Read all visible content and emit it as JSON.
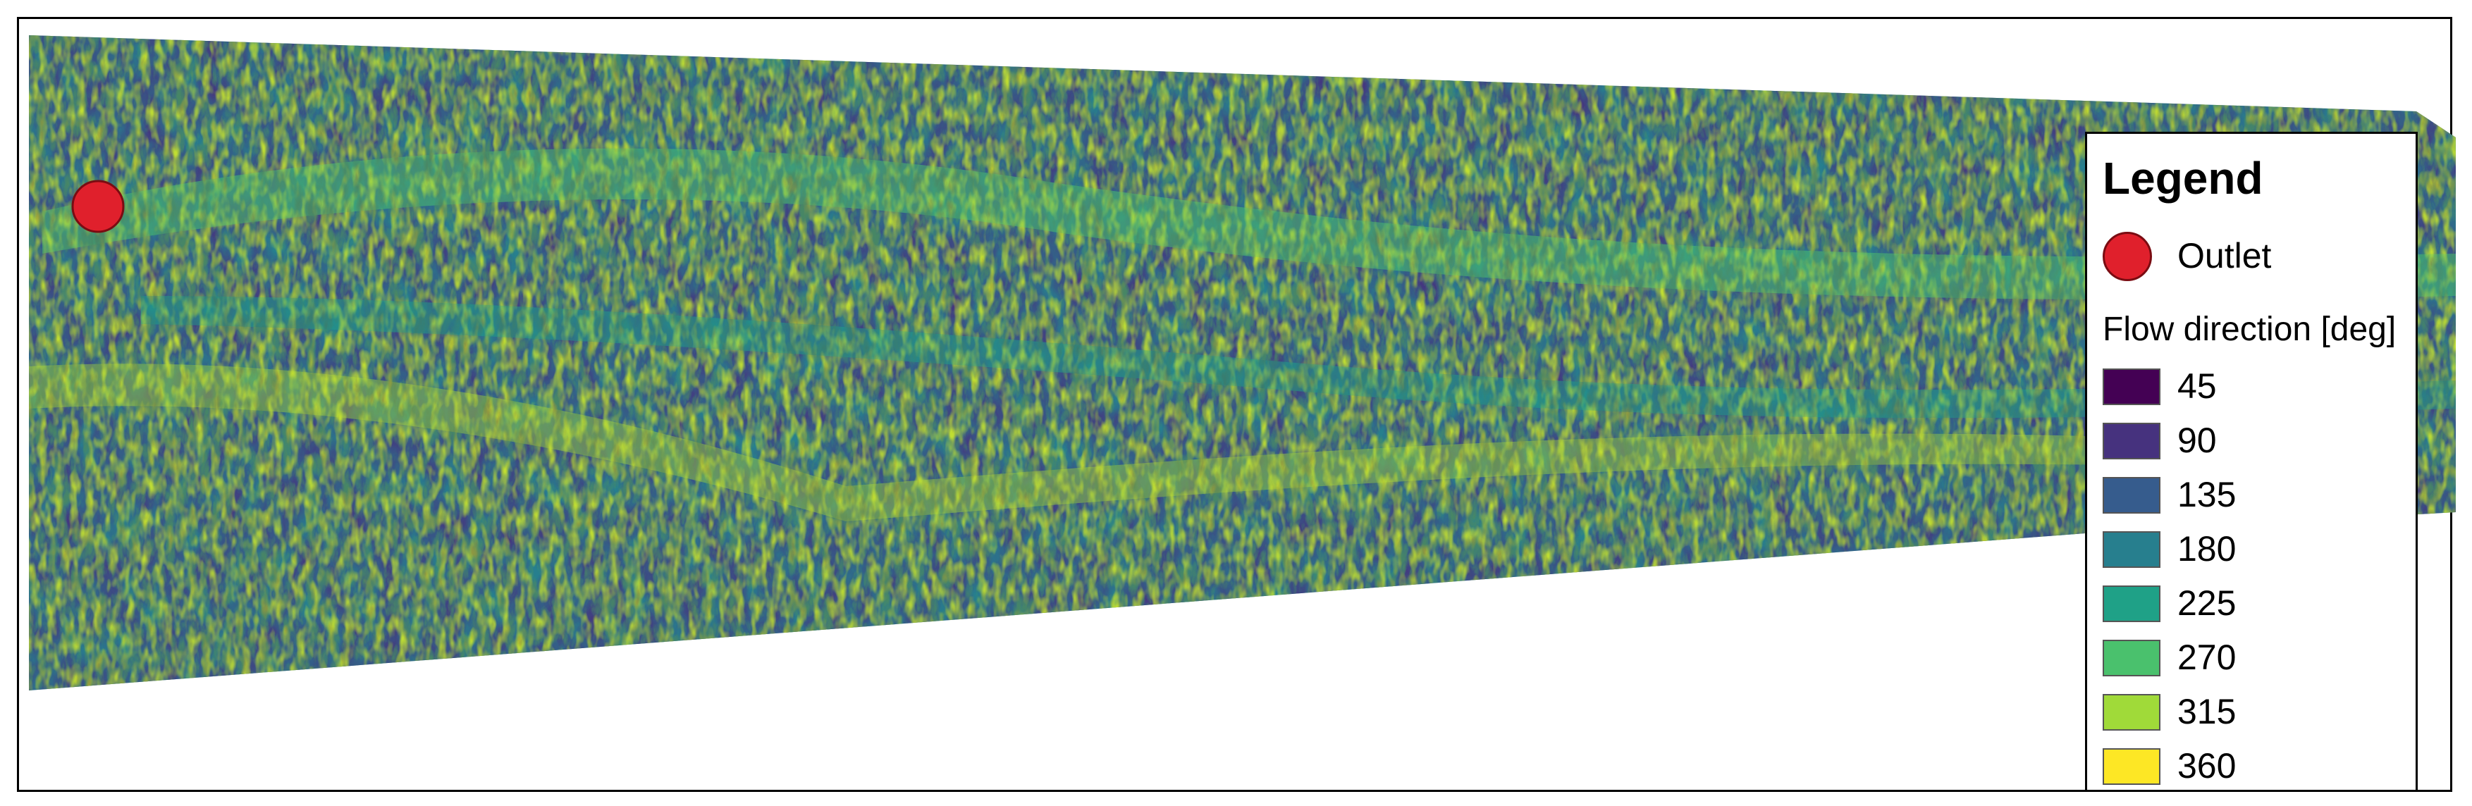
{
  "legend": {
    "title": "Legend",
    "outlet": {
      "label": "Outlet",
      "color": "#e0202c"
    },
    "flow_heading": "Flow direction [deg]",
    "classes": [
      {
        "label": "45",
        "color": "#440154"
      },
      {
        "label": "90",
        "color": "#46327e"
      },
      {
        "label": "135",
        "color": "#365c8d"
      },
      {
        "label": "180",
        "color": "#277f8e"
      },
      {
        "label": "225",
        "color": "#1fa187"
      },
      {
        "label": "270",
        "color": "#4ac16d"
      },
      {
        "label": "315",
        "color": "#a0da39"
      },
      {
        "label": "360",
        "color": "#fde725"
      }
    ]
  },
  "map": {
    "raster_palette": [
      "#440154",
      "#46327e",
      "#365c8d",
      "#277f8e",
      "#1fa187",
      "#4ac16d",
      "#a0da39",
      "#fde725"
    ],
    "outlet_marker": {
      "color": "#e0202c"
    }
  }
}
